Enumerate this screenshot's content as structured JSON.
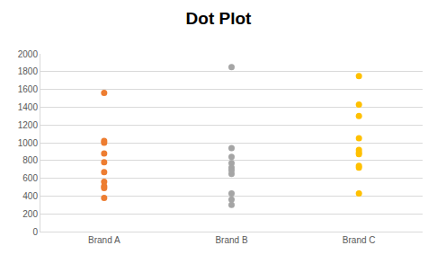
{
  "chart_data": {
    "type": "dot",
    "title": "Dot Plot",
    "categories": [
      "Brand A",
      "Brand B",
      "Brand C"
    ],
    "values": [
      [
        1560,
        1020,
        1000,
        880,
        780,
        670,
        560,
        510,
        490,
        380
      ],
      [
        1850,
        940,
        840,
        770,
        720,
        690,
        650,
        430,
        360,
        300
      ],
      [
        1750,
        1430,
        1300,
        1050,
        920,
        890,
        870,
        740,
        720,
        430
      ]
    ],
    "colors": [
      "#ed7d31",
      "#a5a5a5",
      "#ffc000"
    ],
    "marker": "circle",
    "ylim": [
      0,
      2000
    ],
    "yticks": [
      0,
      200,
      400,
      600,
      800,
      1000,
      1200,
      1400,
      1600,
      1800,
      2000
    ],
    "grid": true
  }
}
